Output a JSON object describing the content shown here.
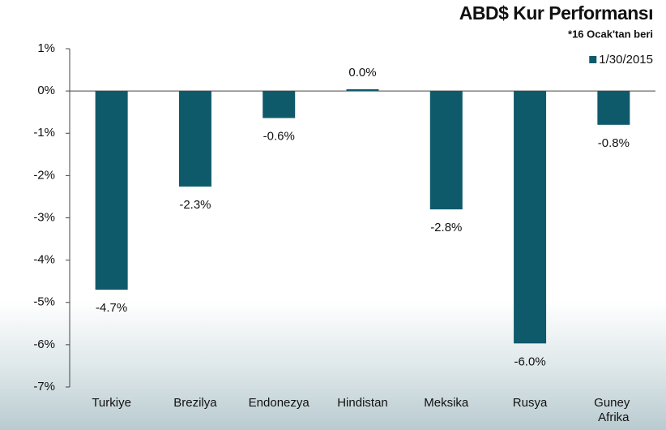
{
  "chart_data": {
    "type": "bar",
    "title": "ABD$ Kur Performansı",
    "subtitle": "*16 Ocak'tan beri",
    "categories": [
      "Turkiye",
      "Brezilya",
      "Endonezya",
      "Hindistan",
      "Meksika",
      "Rusya",
      "Guney Afrika"
    ],
    "series": [
      {
        "name": "1/30/2015",
        "color": "#0e5a6b",
        "values": [
          -4.7,
          -2.26,
          -0.64,
          0.04,
          -2.8,
          -5.97,
          -0.8
        ],
        "value_labels": [
          "-4.7%",
          "-2.3%",
          "-0.6%",
          "0.0%",
          "-2.8%",
          "-6.0%",
          "-0.8%"
        ]
      }
    ],
    "ylim": [
      -7,
      1
    ],
    "yticks": [
      {
        "value": 1,
        "label": "1%"
      },
      {
        "value": 0,
        "label": "0%"
      },
      {
        "value": -1,
        "label": "-1%"
      },
      {
        "value": -2,
        "label": "-2%"
      },
      {
        "value": -3,
        "label": "-3%"
      },
      {
        "value": -4,
        "label": "-4%"
      },
      {
        "value": -5,
        "label": "-5%"
      },
      {
        "value": -6,
        "label": "-6%"
      },
      {
        "value": -7,
        "label": "-7%"
      }
    ],
    "grid": false,
    "legend": "top-right"
  }
}
